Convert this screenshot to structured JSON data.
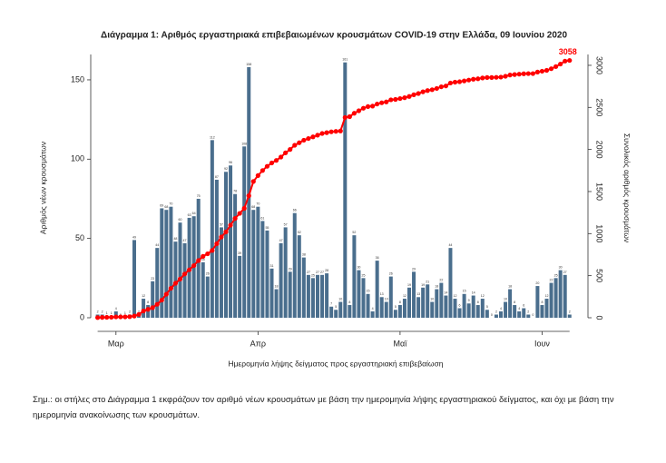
{
  "chart_data": {
    "type": "bar",
    "title": "Διάγραμμα 1: Αριθμός εργαστηριακά επιβεβαιωμένων κρουσμάτων COVID-19 στην Ελλάδα, 09 Ιουνίου 2020",
    "x_label": "Ημερομηνία λήψης δείγματος προς εργαστηριακή επιβεβαίωση",
    "y_label": "Αριθμός νέων κρουσμάτων",
    "y2_label": "Συνολικός αριθμός κρουσμάτων",
    "note": "Σημ.: οι στήλες στο Διάγραμμα 1 εκφράζουν τον αριθμό νέων κρουσμάτων με βάση την ημερομηνία λήψης εργαστηριακού δείγματος, και όχι με βάση την ημερομηνία ανακοίνωσης των κρουσμάτων.",
    "categories": [
      null,
      null,
      null,
      null,
      "Μαρ",
      null,
      null,
      null,
      null,
      null,
      null,
      null,
      null,
      null,
      null,
      null,
      null,
      null,
      null,
      null,
      null,
      null,
      null,
      null,
      null,
      null,
      null,
      null,
      null,
      null,
      null,
      null,
      null,
      null,
      null,
      "Απρ",
      null,
      null,
      null,
      null,
      null,
      null,
      null,
      null,
      null,
      null,
      null,
      null,
      null,
      null,
      null,
      null,
      null,
      null,
      null,
      null,
      null,
      null,
      null,
      null,
      null,
      null,
      null,
      null,
      null,
      null,
      "Μαϊ",
      null,
      null,
      null,
      null,
      null,
      null,
      null,
      null,
      null,
      null,
      null,
      null,
      null,
      null,
      null,
      null,
      null,
      null,
      null,
      null,
      null,
      null,
      null,
      null,
      null,
      null,
      null,
      null,
      null,
      null,
      "Ιουν",
      null,
      null,
      null,
      null,
      null,
      null
    ],
    "series": [
      {
        "color": "#4a6e8d",
        "values": [
          2,
          2,
          1,
          1,
          4,
          0,
          1,
          2,
          49,
          2,
          12,
          8,
          23,
          44,
          69,
          68,
          70,
          48,
          60,
          47,
          63,
          64,
          75,
          35,
          26,
          112,
          87,
          57,
          92,
          96,
          78,
          39,
          108,
          158,
          68,
          70,
          61,
          55,
          31,
          18,
          47,
          57,
          29,
          66,
          52,
          38,
          27,
          25,
          27,
          27,
          28,
          7,
          5,
          10,
          161,
          8,
          52,
          30,
          25,
          15,
          4,
          36,
          13,
          10,
          26,
          5,
          8,
          12,
          19,
          29,
          13,
          19,
          21,
          10,
          18,
          22,
          14,
          44,
          12,
          6,
          15,
          9,
          14,
          8,
          12,
          5,
          0,
          2,
          4,
          10,
          18,
          8,
          4,
          6,
          2,
          0,
          20,
          8,
          12,
          22,
          25,
          30,
          27,
          2
        ]
      },
      {
        "type": "line",
        "axis": "y2",
        "color": "#ff0000",
        "values": [
          2,
          4,
          5,
          6,
          10,
          10,
          11,
          13,
          20,
          40,
          80,
          100,
          120,
          160,
          210,
          280,
          350,
          410,
          460,
          520,
          570,
          620,
          680,
          730,
          760,
          800,
          880,
          960,
          1020,
          1100,
          1180,
          1240,
          1300,
          1450,
          1620,
          1690,
          1750,
          1800,
          1840,
          1870,
          1910,
          1960,
          2000,
          2050,
          2080,
          2110,
          2130,
          2150,
          2170,
          2190,
          2200,
          2210,
          2215,
          2220,
          2380,
          2390,
          2430,
          2460,
          2490,
          2510,
          2515,
          2540,
          2555,
          2565,
          2590,
          2595,
          2605,
          2615,
          2630,
          2650,
          2665,
          2685,
          2700,
          2710,
          2725,
          2745,
          2755,
          2790,
          2800,
          2805,
          2815,
          2825,
          2835,
          2840,
          2850,
          2855,
          2855,
          2857,
          2860,
          2870,
          2885,
          2890,
          2895,
          2900,
          2902,
          2902,
          2920,
          2930,
          2940,
          2960,
          2985,
          3015,
          3050,
          3058
        ]
      }
    ],
    "ylim": [
      0,
      166
    ],
    "yticks": [
      0,
      50,
      100,
      150
    ],
    "y2lim": [
      0,
      3129
    ],
    "y2ticks": [
      0,
      500,
      1000,
      1500,
      2000,
      2500,
      3000
    ]
  }
}
